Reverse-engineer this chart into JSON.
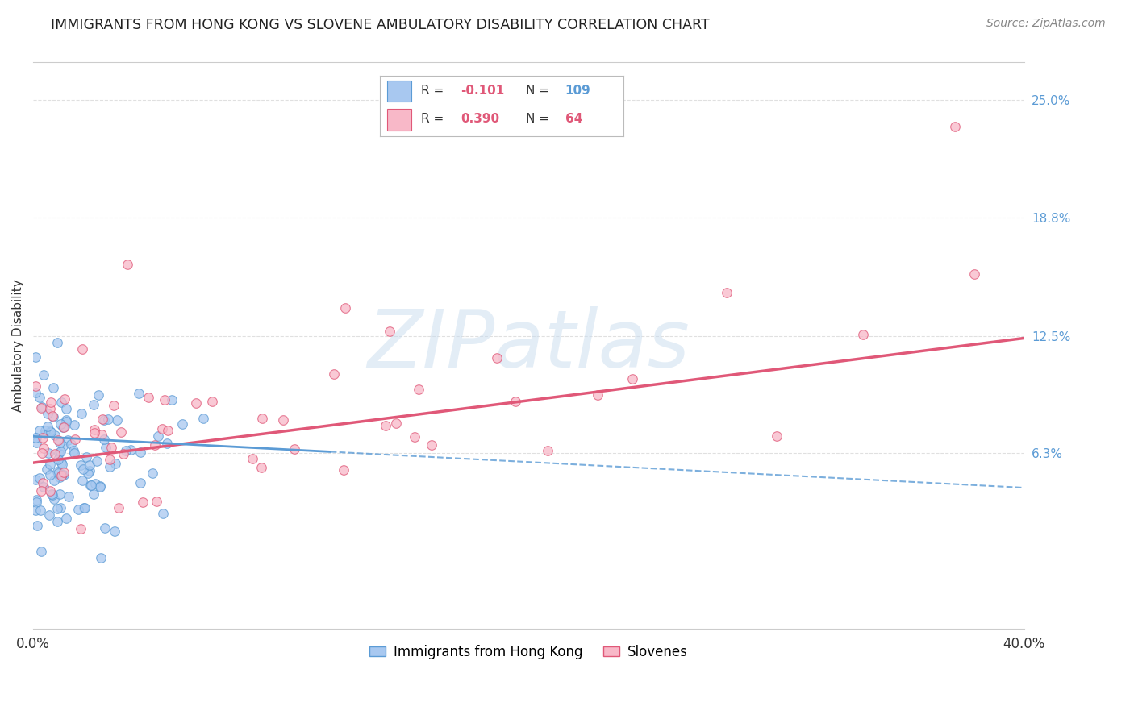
{
  "title": "IMMIGRANTS FROM HONG KONG VS SLOVENE AMBULATORY DISABILITY CORRELATION CHART",
  "source": "Source: ZipAtlas.com",
  "ylabel": "Ambulatory Disability",
  "xlim": [
    0.0,
    0.4
  ],
  "ylim": [
    -0.03,
    0.27
  ],
  "yticks": [
    0.063,
    0.125,
    0.188,
    0.25
  ],
  "ytick_labels": [
    "6.3%",
    "12.5%",
    "18.8%",
    "25.0%"
  ],
  "xticks": [
    0.0,
    0.1,
    0.2,
    0.3,
    0.4
  ],
  "xtick_labels": [
    "0.0%",
    "",
    "",
    "",
    "40.0%"
  ],
  "series1_label": "Immigrants from Hong Kong",
  "series1_R": "-0.101",
  "series1_N": "109",
  "series1_color": "#A8C8F0",
  "series1_edge": "#5B9BD5",
  "series2_label": "Slovenes",
  "series2_R": "0.390",
  "series2_N": "64",
  "series2_color": "#F8B8C8",
  "series2_edge": "#E05878",
  "trend1_color": "#5B9BD5",
  "trend2_color": "#E05878",
  "watermark": "ZIPatlas",
  "background": "#FFFFFF",
  "grid_color": "#E0E0E0"
}
